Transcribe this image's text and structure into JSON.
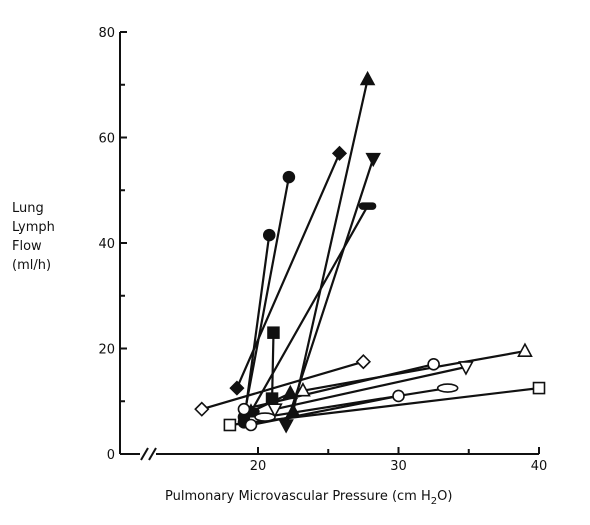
{
  "chart_data": {
    "type": "scatter",
    "title": "",
    "ylabel_lines": [
      "Lung",
      "Lymph",
      "Flow",
      "(ml/h)"
    ],
    "xlabel_main": "Pulmonary Microvascular Pressure (cm H",
    "xlabel_sub": "2",
    "xlabel_end": "O)",
    "xlim": [
      10,
      40
    ],
    "ylim": [
      0,
      80
    ],
    "x_ticks": [
      20,
      30,
      40
    ],
    "x_tick_labels": [
      "20",
      "30",
      "40"
    ],
    "y_ticks": [
      0,
      20,
      40,
      60,
      80
    ],
    "y_tick_labels": [
      "0",
      "20",
      "40",
      "60",
      "80"
    ],
    "x_axis_break": true,
    "grid": false,
    "series": [
      {
        "marker": "triangle-up",
        "fill": "filled",
        "points": [
          [
            22.5,
            8
          ],
          [
            27.8,
            71
          ]
        ]
      },
      {
        "marker": "diamond",
        "fill": "filled",
        "points": [
          [
            18.5,
            12.5
          ],
          [
            25.8,
            57
          ]
        ]
      },
      {
        "marker": "triangle-down",
        "fill": "filled",
        "points": [
          [
            22,
            5.5
          ],
          [
            28.2,
            56
          ]
        ]
      },
      {
        "marker": "circle",
        "fill": "filled",
        "points": [
          [
            19,
            7
          ],
          [
            22.2,
            52.5
          ]
        ]
      },
      {
        "marker": "dash",
        "fill": "filled",
        "points": [
          [
            19.5,
            8
          ],
          [
            27.8,
            47
          ]
        ]
      },
      {
        "marker": "circle",
        "fill": "filled",
        "points": [
          [
            19,
            6
          ],
          [
            20.8,
            41.5
          ]
        ]
      },
      {
        "marker": "square",
        "fill": "filled",
        "points": [
          [
            21,
            10.5
          ],
          [
            21.1,
            23
          ]
        ]
      },
      {
        "marker": "triangle-up",
        "fill": "filled",
        "points": [
          [
            19.5,
            8
          ],
          [
            22.3,
            11.5
          ]
        ]
      },
      {
        "marker": "diamond",
        "fill": "open",
        "points": [
          [
            16,
            8.5
          ],
          [
            27.5,
            17.5
          ]
        ]
      },
      {
        "marker": "triangle-up",
        "fill": "open",
        "points": [
          [
            23.2,
            12
          ],
          [
            39,
            19.5
          ]
        ]
      },
      {
        "marker": "circle",
        "fill": "open",
        "points": [
          [
            19,
            8.5
          ],
          [
            32.5,
            17
          ]
        ]
      },
      {
        "marker": "triangle-down",
        "fill": "open",
        "points": [
          [
            21.2,
            8.5
          ],
          [
            34.8,
            16.5
          ]
        ]
      },
      {
        "marker": "ellipse",
        "fill": "open",
        "points": [
          [
            20.5,
            7
          ],
          [
            33.5,
            12.5
          ]
        ]
      },
      {
        "marker": "circle",
        "fill": "open",
        "points": [
          [
            19.5,
            5.5
          ],
          [
            30,
            11
          ]
        ]
      },
      {
        "marker": "square",
        "fill": "open",
        "points": [
          [
            18,
            5.5
          ],
          [
            40,
            12.5
          ]
        ]
      }
    ]
  }
}
